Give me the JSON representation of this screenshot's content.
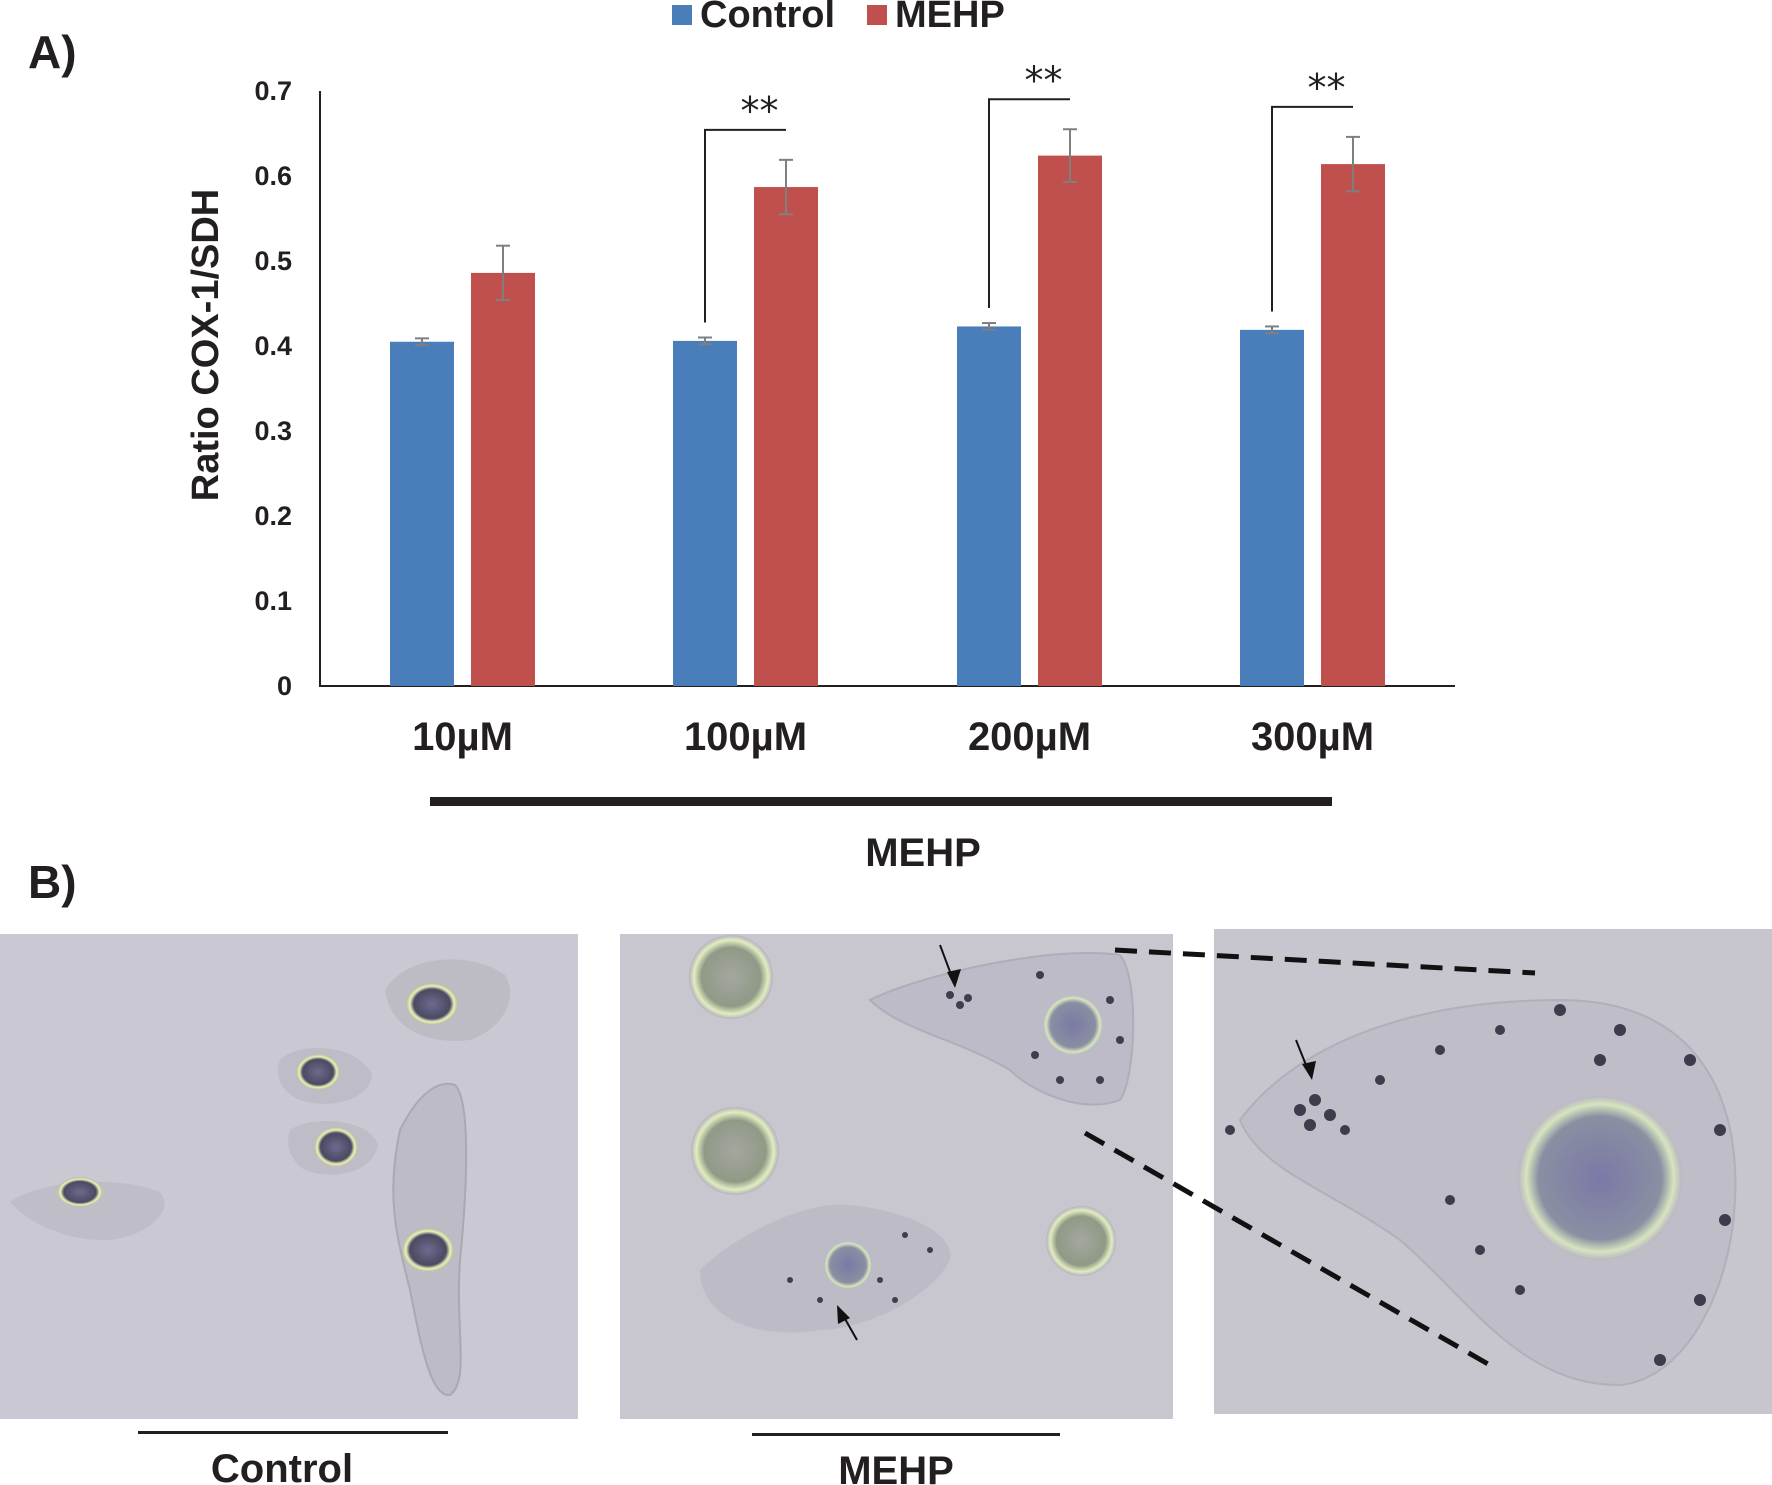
{
  "figure": {
    "panel_a_label": "A)",
    "panel_b_label": "B)",
    "treatment_group_label": "MEHP",
    "micrographs": [
      {
        "caption": "Control"
      },
      {
        "caption": "MEHP"
      },
      {
        "caption": ""
      }
    ]
  },
  "colors": {
    "control": "#4a7ebb",
    "mehp": "#c0504d",
    "error_bar": "#7f7f7f",
    "axis": "#231f20"
  },
  "chart_data": {
    "type": "bar",
    "ylabel": "Ratio COX-1/SDH",
    "xlabel": "",
    "ylim": [
      0,
      0.7
    ],
    "yticks": [
      "0",
      "0.1",
      "0.2",
      "0.3",
      "0.4",
      "0.5",
      "0.6",
      "0.7"
    ],
    "categories": [
      "10µM",
      "100µM",
      "200µM",
      "300µM"
    ],
    "legend_position": "top-center",
    "series": [
      {
        "name": "Control",
        "values": [
          0.405,
          0.406,
          0.423,
          0.419
        ],
        "errors": [
          0.004,
          0.004,
          0.004,
          0.004
        ]
      },
      {
        "name": "MEHP",
        "values": [
          0.486,
          0.587,
          0.624,
          0.614
        ],
        "errors": [
          0.032,
          0.032,
          0.031,
          0.032
        ]
      }
    ],
    "significance": [
      {
        "category": "100µM",
        "label": "**"
      },
      {
        "category": "200µM",
        "label": "**"
      },
      {
        "category": "300µM",
        "label": "**"
      }
    ]
  }
}
